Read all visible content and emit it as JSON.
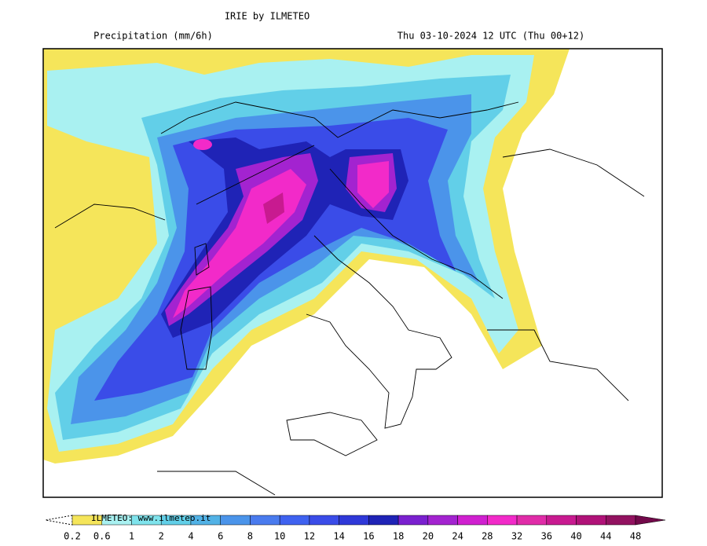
{
  "header": {
    "title": "IRIE by ILMETEO",
    "subtitle": "Precipitation (mm/6h)",
    "valid_time": "Thu 03-10-2024 12 UTC (Thu 00+12)"
  },
  "legend": {
    "watermark": "ILMETEO: www.ilmeteo.it",
    "levels": [
      0.2,
      0.6,
      1,
      2,
      4,
      6,
      8,
      10,
      12,
      14,
      16,
      18,
      20,
      24,
      28,
      32,
      36,
      40,
      44,
      48
    ],
    "colors": [
      "#f5e55a",
      "#a9f1f1",
      "#7fe3ec",
      "#62cfe8",
      "#52b2e6",
      "#4b94ea",
      "#4a7bee",
      "#3f62f0",
      "#3a4ce8",
      "#2f38d8",
      "#1f23b6",
      "#7a20cf",
      "#a323d0",
      "#d020d0",
      "#f22ac9",
      "#e02ca8",
      "#c81a90",
      "#b01278",
      "#921260"
    ],
    "over_color": "#72094a"
  }
}
